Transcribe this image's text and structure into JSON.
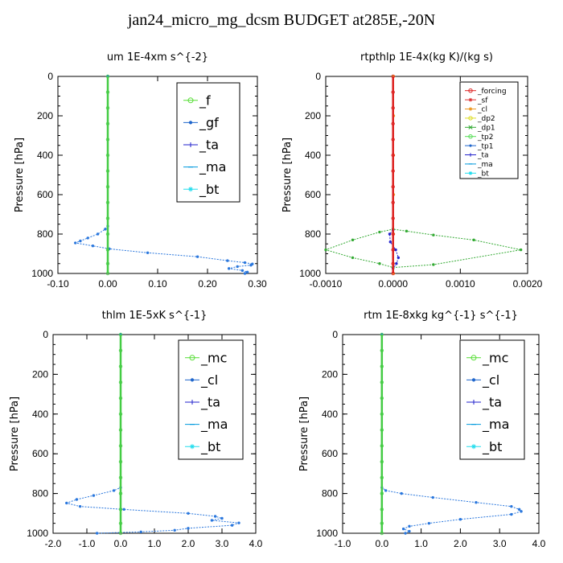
{
  "figure_title": "jan24_micro_mg_dcsm  BUDGET at285E,-20N",
  "chart_data": [
    {
      "type": "line",
      "title": "um   1E-4xm s^{-2}",
      "ylabel": "Pressure [hPa]",
      "xlim": [
        -0.1,
        0.3
      ],
      "ylim": [
        1000,
        0
      ],
      "xticks": [
        "-0.10",
        "0.00",
        "0.10",
        "0.20",
        "0.30"
      ],
      "yticks": [
        "0",
        "200",
        "400",
        "600",
        "800",
        "1000"
      ],
      "legend_size": "large",
      "series": [
        {
          "name": "_f",
          "color": "#55dd33",
          "marker": "o"
        },
        {
          "name": "_gf",
          "color": "#1f66cc",
          "marker": "dot"
        },
        {
          "name": "_ta",
          "color": "#2222cc",
          "marker": "+"
        },
        {
          "name": "_ma",
          "color": "#0099dd",
          "marker": "-"
        },
        {
          "name": "_bt",
          "color": "#22ddee",
          "marker": "*"
        }
      ],
      "profiles": [
        {
          "color": "#2a77dd",
          "x": [
            0,
            0,
            -0.005,
            -0.02,
            -0.04,
            -0.055,
            -0.065,
            -0.03,
            0.003,
            0.08,
            0.18,
            0.24,
            0.275,
            0.29,
            0.287,
            0.26,
            0.243,
            0.27,
            0.28,
            0.275
          ],
          "y": [
            0,
            760,
            775,
            800,
            820,
            835,
            845,
            860,
            875,
            895,
            915,
            935,
            945,
            952,
            958,
            965,
            975,
            985,
            993,
            1000
          ]
        },
        {
          "color": "#44cc44",
          "x": [
            0,
            0,
            0,
            0,
            0,
            0,
            0,
            0,
            0,
            0,
            0,
            0,
            0,
            0
          ],
          "y": [
            0,
            80,
            160,
            240,
            320,
            400,
            480,
            560,
            640,
            720,
            800,
            880,
            950,
            1000
          ]
        }
      ]
    },
    {
      "type": "line",
      "title": "rtpthlp   1E-4x(kg K)/(kg s)",
      "ylabel": "Pressure [hPa]",
      "xlim": [
        -0.001,
        0.002
      ],
      "ylim": [
        1000,
        0
      ],
      "xticks": [
        "-0.0010",
        "0.0000",
        "0.0010",
        "0.0020"
      ],
      "yticks": [
        "0",
        "200",
        "400",
        "600",
        "800",
        "1000"
      ],
      "legend_size": "small",
      "series": [
        {
          "name": "_forcing",
          "color": "#dd2222",
          "marker": "o"
        },
        {
          "name": "_sf",
          "color": "#dd3333",
          "marker": "*"
        },
        {
          "name": "_cl",
          "color": "#ee9922",
          "marker": "*"
        },
        {
          "name": "_dp2",
          "color": "#dddd22",
          "marker": "o"
        },
        {
          "name": "_dp1",
          "color": "#33aa33",
          "marker": "x"
        },
        {
          "name": "_tp2",
          "color": "#55dd55",
          "marker": "o"
        },
        {
          "name": "_tp1",
          "color": "#1f66cc",
          "marker": "dot"
        },
        {
          "name": "_ta",
          "color": "#2222cc",
          "marker": "+"
        },
        {
          "name": "_ma",
          "color": "#0099dd",
          "marker": "-"
        },
        {
          "name": "_bt",
          "color": "#22ddee",
          "marker": "*"
        }
      ],
      "profiles": [
        {
          "color": "#33aa33",
          "x": [
            0,
            0,
            -0.0002,
            -0.0006,
            -0.001,
            -0.0006,
            -0.0002,
            0,
            0.0006,
            0.0019,
            0.0012,
            0.0006,
            0.0002,
            0
          ],
          "y": [
            0,
            775,
            790,
            830,
            880,
            920,
            950,
            970,
            955,
            880,
            830,
            805,
            785,
            775
          ]
        },
        {
          "color": "#2222cc",
          "x": [
            0,
            -5e-05,
            -4e-05,
            4e-05,
            8e-05,
            5e-05,
            0
          ],
          "y": [
            780,
            800,
            840,
            880,
            920,
            950,
            975
          ]
        },
        {
          "color": "#ee9922",
          "x": [
            1e-05,
            1e-05,
            1e-05,
            1e-05,
            1e-05,
            1e-05
          ],
          "y": [
            0,
            200,
            400,
            600,
            800,
            1000
          ]
        },
        {
          "color": "#dd2222",
          "x": [
            0,
            0,
            0,
            0,
            0,
            0,
            0,
            0,
            0,
            0,
            0,
            0,
            0,
            0
          ],
          "y": [
            0,
            80,
            160,
            240,
            320,
            400,
            480,
            560,
            640,
            720,
            800,
            880,
            950,
            1000
          ]
        }
      ]
    },
    {
      "type": "line",
      "title": "thlm   1E-5xK s^{-1}",
      "ylabel": "Pressure [hPa]",
      "xlim": [
        -2.0,
        4.0
      ],
      "ylim": [
        1000,
        0
      ],
      "xticks": [
        "-2.0",
        "-1.0",
        "0.0",
        "1.0",
        "2.0",
        "3.0",
        "4.0"
      ],
      "yticks": [
        "0",
        "200",
        "400",
        "600",
        "800",
        "1000"
      ],
      "legend_size": "large",
      "series": [
        {
          "name": "_mc",
          "color": "#55dd33",
          "marker": "o"
        },
        {
          "name": "_cl",
          "color": "#1f66cc",
          "marker": "dot"
        },
        {
          "name": "_ta",
          "color": "#2222cc",
          "marker": "+"
        },
        {
          "name": "_ma",
          "color": "#0099dd",
          "marker": "-"
        },
        {
          "name": "_bt",
          "color": "#22ddee",
          "marker": "*"
        }
      ],
      "profiles": [
        {
          "color": "#2a77dd",
          "x": [
            0,
            0,
            -0.2,
            -0.8,
            -1.3,
            -1.6,
            -1.2,
            0.1,
            2.0,
            2.8,
            3.0,
            2.7,
            3.5,
            3.3,
            2.0,
            1.6,
            0.6,
            -0.7
          ],
          "y": [
            0,
            770,
            785,
            810,
            830,
            848,
            865,
            880,
            900,
            915,
            925,
            935,
            948,
            960,
            975,
            985,
            993,
            1000
          ]
        },
        {
          "color": "#44cc44",
          "x": [
            0,
            0,
            0,
            0,
            0,
            0,
            0,
            0,
            0,
            0,
            0,
            0,
            0,
            0
          ],
          "y": [
            0,
            80,
            160,
            240,
            320,
            400,
            480,
            560,
            640,
            720,
            800,
            880,
            950,
            1000
          ]
        }
      ]
    },
    {
      "type": "line",
      "title": "rtm   1E-8xkg kg^{-1} s^{-1}",
      "ylabel": "Pressure [hPa]",
      "xlim": [
        -1.0,
        4.0
      ],
      "ylim": [
        1000,
        0
      ],
      "xticks": [
        "-1.0",
        "0.0",
        "1.0",
        "2.0",
        "3.0",
        "4.0"
      ],
      "yticks": [
        "0",
        "200",
        "400",
        "600",
        "800",
        "1000"
      ],
      "legend_size": "large",
      "series": [
        {
          "name": "_mc",
          "color": "#55dd33",
          "marker": "o"
        },
        {
          "name": "_cl",
          "color": "#1f66cc",
          "marker": "dot"
        },
        {
          "name": "_ta",
          "color": "#2222cc",
          "marker": "+"
        },
        {
          "name": "_ma",
          "color": "#0099dd",
          "marker": "-"
        },
        {
          "name": "_bt",
          "color": "#22ddee",
          "marker": "*"
        }
      ],
      "profiles": [
        {
          "color": "#2a77dd",
          "x": [
            0,
            0,
            0.1,
            0.5,
            1.3,
            2.4,
            3.3,
            3.5,
            3.55,
            3.3,
            2.0,
            1.2,
            0.7,
            0.55,
            0.7,
            0.6
          ],
          "y": [
            0,
            770,
            785,
            800,
            820,
            845,
            865,
            880,
            890,
            905,
            930,
            950,
            965,
            978,
            990,
            1000
          ]
        },
        {
          "color": "#44cc44",
          "x": [
            0,
            0,
            0,
            0,
            0,
            0,
            0,
            0,
            0,
            0,
            0,
            0,
            0,
            0
          ],
          "y": [
            0,
            80,
            160,
            240,
            320,
            400,
            480,
            560,
            640,
            720,
            800,
            880,
            950,
            1000
          ]
        }
      ]
    }
  ]
}
